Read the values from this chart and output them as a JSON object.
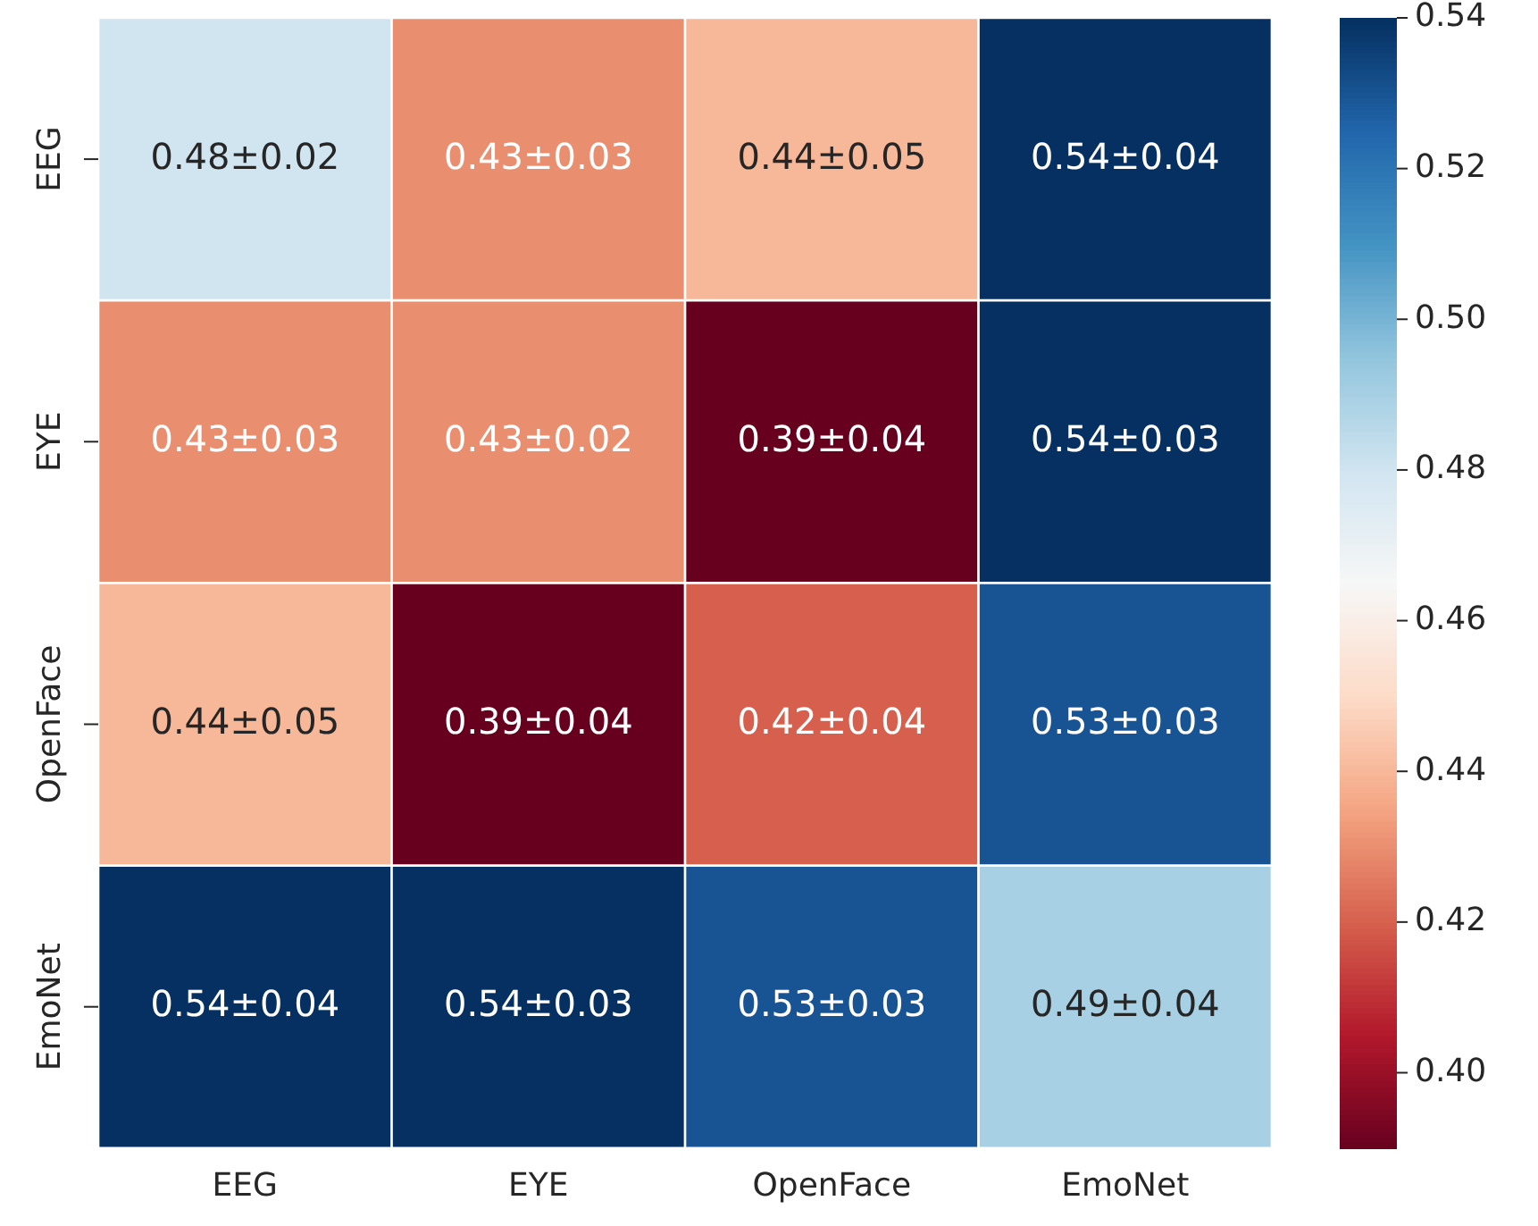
{
  "chart_data": {
    "type": "heatmap",
    "categories": [
      "EEG",
      "EYE",
      "OpenFace",
      "EmoNet"
    ],
    "y_categories": [
      "EEG",
      "EYE",
      "OpenFace",
      "EmoNet"
    ],
    "cells": [
      [
        0.48,
        0.43,
        0.44,
        0.54
      ],
      [
        0.43,
        0.43,
        0.39,
        0.54
      ],
      [
        0.44,
        0.39,
        0.42,
        0.53
      ],
      [
        0.54,
        0.54,
        0.53,
        0.49
      ]
    ],
    "cell_labels": [
      [
        "0.48±0.02",
        "0.43±0.03",
        "0.44±0.05",
        "0.54±0.04"
      ],
      [
        "0.43±0.03",
        "0.43±0.02",
        "0.39±0.04",
        "0.54±0.03"
      ],
      [
        "0.44±0.05",
        "0.39±0.04",
        "0.42±0.04",
        "0.53±0.03"
      ],
      [
        "0.54±0.04",
        "0.54±0.03",
        "0.53±0.03",
        "0.49±0.04"
      ]
    ],
    "clim": [
      0.39,
      0.54
    ],
    "cticks": [
      {
        "value": 0.4,
        "label": "0.40"
      },
      0.42,
      0.44,
      0.46,
      0.48,
      {
        "value": 0.5,
        "label": "0.50"
      },
      0.52,
      0.54
    ]
  }
}
